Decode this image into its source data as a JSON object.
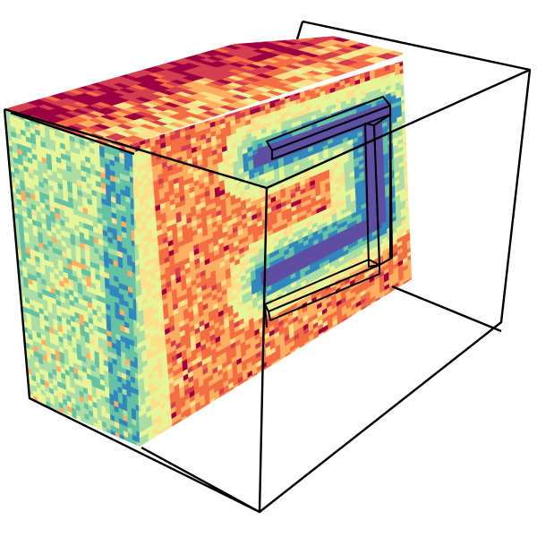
{
  "scene": {
    "background": "#ffffff",
    "outline_color": "#000000",
    "colormap": [
      "#5e4fa2",
      "#3288bd",
      "#66c2a5",
      "#abdda4",
      "#e6f598",
      "#fee08b",
      "#fdae61",
      "#f46d43",
      "#d53e4f",
      "#9e0142"
    ],
    "objects": [
      "volume-slice",
      "bounding-box-wireframe",
      "u-shaped-obstacle-outline"
    ]
  }
}
